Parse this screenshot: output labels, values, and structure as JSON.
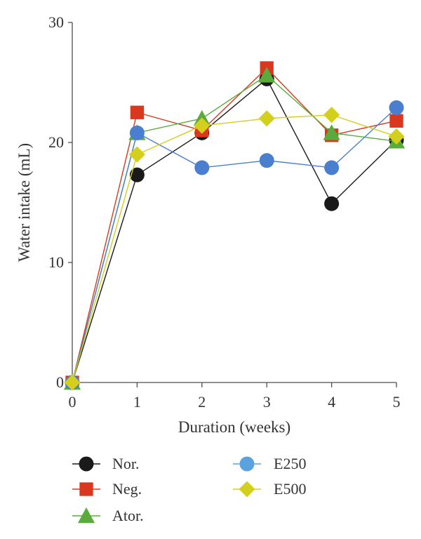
{
  "chart_data": {
    "type": "line",
    "xlabel": "Duration (weeks)",
    "ylabel": "Water intake (mL)",
    "x": [
      0,
      1,
      2,
      3,
      4,
      5
    ],
    "xticks": [
      "0",
      "1",
      "2",
      "3",
      "4",
      "5"
    ],
    "yticks": [
      "0",
      "10",
      "20",
      "30"
    ],
    "xlim": [
      0,
      5
    ],
    "ylim": [
      0,
      30
    ],
    "grid": false,
    "legend_position": "bottom",
    "series": [
      {
        "name": "Nor.",
        "marker": "circle",
        "color": "#1a1a1a",
        "values": [
          0,
          17.3,
          20.8,
          25.3,
          14.9,
          20.2
        ]
      },
      {
        "name": "Neg.",
        "marker": "square",
        "color": "#d9381e",
        "values": [
          0,
          22.5,
          21.0,
          26.2,
          20.6,
          21.8
        ]
      },
      {
        "name": "Ator.",
        "marker": "triangle",
        "color": "#5aab3c",
        "values": [
          0,
          20.8,
          22.0,
          25.6,
          20.8,
          20.1
        ]
      },
      {
        "name": "E250",
        "marker": "circle",
        "color": "#4a7fcf",
        "legend_color": "#5ba3e0",
        "values": [
          0,
          20.8,
          17.9,
          18.5,
          17.9,
          22.9
        ]
      },
      {
        "name": "E500",
        "marker": "diamond",
        "color": "#d4cf1c",
        "values": [
          0,
          19.0,
          21.4,
          22.0,
          22.3,
          20.5
        ]
      }
    ]
  }
}
